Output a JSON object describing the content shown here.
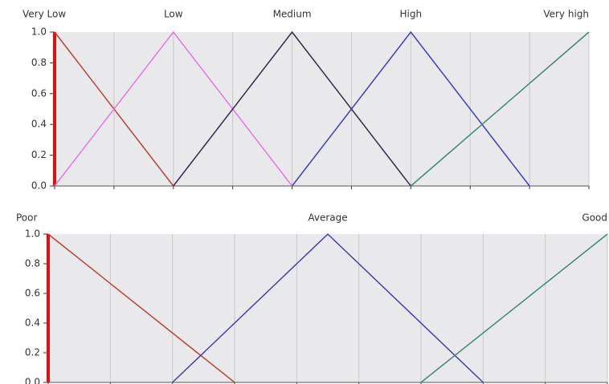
{
  "chart_data": [
    {
      "type": "line",
      "series": [
        {
          "name": "Very Low",
          "color": "#b8443a",
          "x": [
            0,
            2
          ],
          "values": [
            1,
            0
          ]
        },
        {
          "name": "Low",
          "color": "#e07ae0",
          "x": [
            0,
            2,
            4
          ],
          "values": [
            0,
            1,
            0
          ]
        },
        {
          "name": "Medium",
          "color": "#2e2e4a",
          "x": [
            2,
            4,
            6
          ],
          "values": [
            0,
            1,
            0
          ]
        },
        {
          "name": "High",
          "color": "#3f3fb8",
          "x": [
            4,
            6,
            8
          ],
          "values": [
            0,
            1,
            0
          ]
        },
        {
          "name": "Very high",
          "color": "#3f8a72",
          "x": [
            6,
            9
          ],
          "values": [
            0,
            1
          ]
        }
      ],
      "xlim": [
        0,
        9
      ],
      "ylim": [
        0,
        1
      ],
      "yticks": [
        {
          "value": 0,
          "label": "0.0"
        },
        0.2,
        0.4,
        0.6,
        0.8,
        {
          "value": 1,
          "label": "1.0"
        }
      ],
      "grid": true
    },
    {
      "type": "line",
      "series": [
        {
          "name": "Poor",
          "color": "#b8443a",
          "x": [
            0,
            3
          ],
          "values": [
            1,
            0
          ]
        },
        {
          "name": "Average",
          "color": "#3f3fb8",
          "x": [
            2,
            4.5,
            7
          ],
          "values": [
            0,
            1,
            0
          ]
        },
        {
          "name": "Good",
          "color": "#3f8a72",
          "x": [
            6,
            9
          ],
          "values": [
            0,
            1
          ]
        }
      ],
      "xlim": [
        0,
        9
      ],
      "ylim": [
        0,
        1
      ],
      "yticks": [
        {
          "value": 0,
          "label": "0.0"
        },
        0.2,
        0.4,
        0.6,
        0.8,
        {
          "value": 1,
          "label": "1.0"
        }
      ],
      "grid": true
    }
  ]
}
